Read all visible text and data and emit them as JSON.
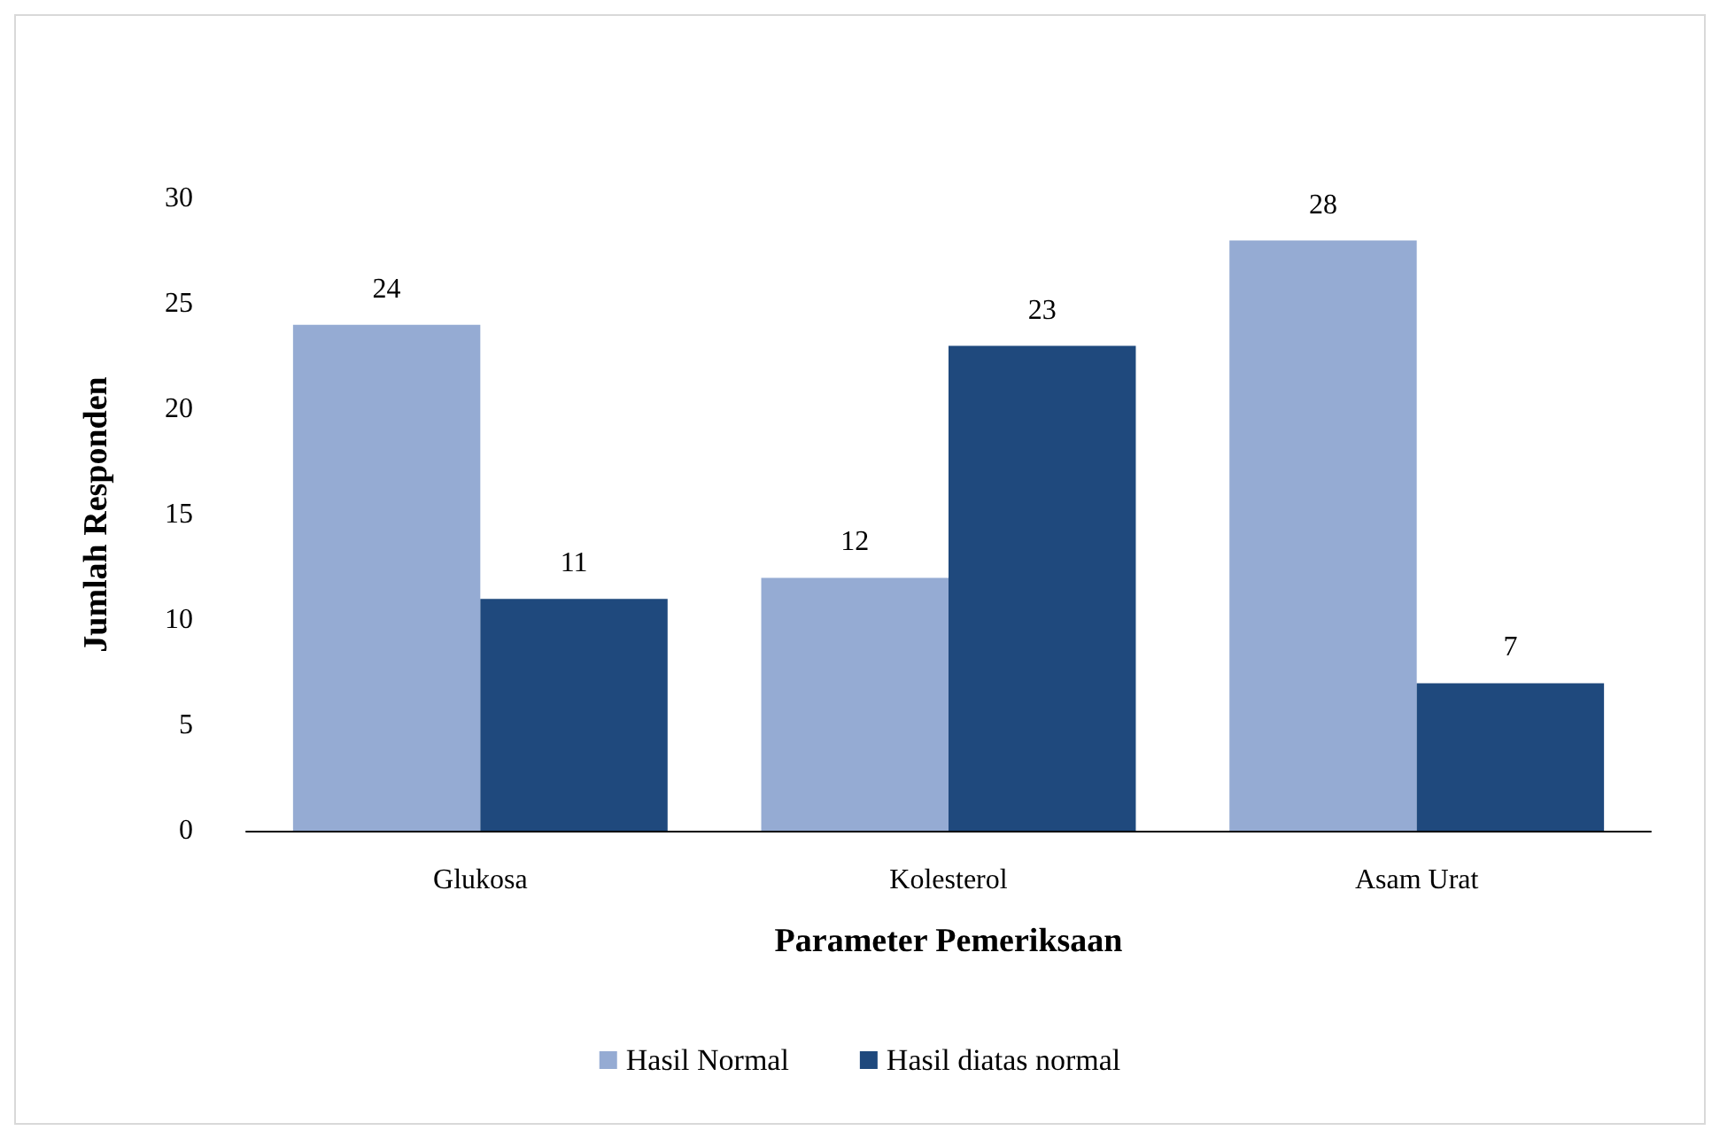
{
  "chart_data": {
    "type": "bar",
    "xlabel": "Parameter Pemeriksaan",
    "ylabel": "Jumlah Responden",
    "categories": [
      "Glukosa",
      "Kolesterol",
      "Asam Urat"
    ],
    "series": [
      {
        "name": "Hasil Normal",
        "color": "#95abd3",
        "values": [
          24,
          12,
          28
        ]
      },
      {
        "name": "Hasil diatas normal",
        "color": "#1f497d",
        "values": [
          11,
          23,
          7
        ]
      }
    ],
    "ylim": [
      0,
      30
    ],
    "yticks": [
      0,
      5,
      10,
      15,
      20,
      25,
      30
    ],
    "grid": false,
    "legend": "bottom",
    "data_labels": true
  }
}
